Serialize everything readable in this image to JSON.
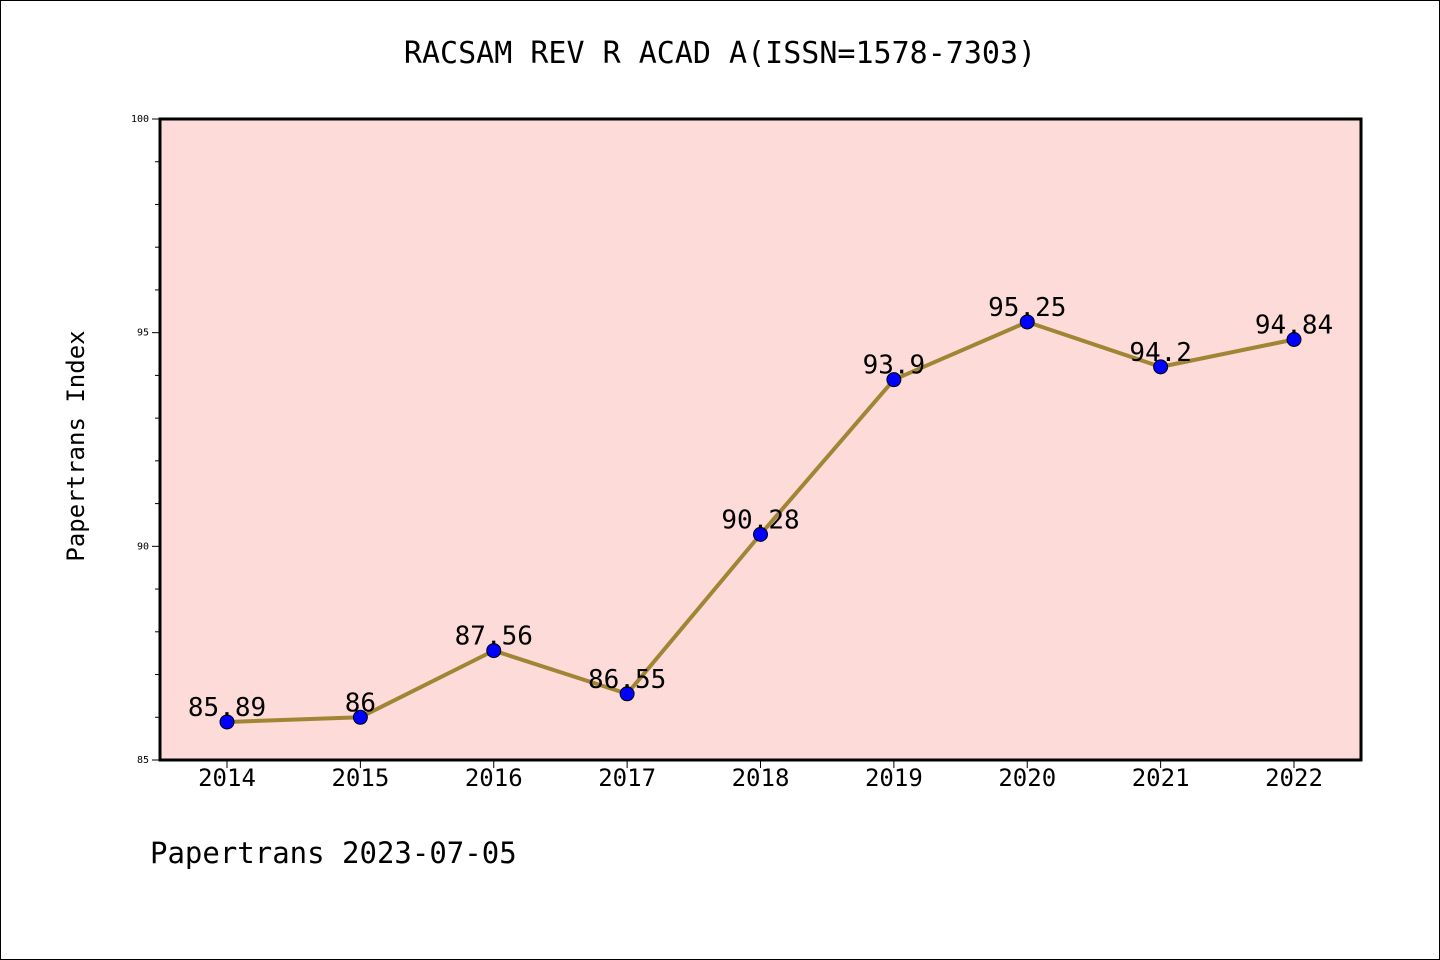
{
  "footer": {
    "note": "Papertrans 2023-07-05"
  },
  "chart_data": {
    "type": "line",
    "title": "RACSAM REV R ACAD A(ISSN=1578-7303)",
    "xlabel": "",
    "ylabel": "Papertrans Index",
    "categories": [
      "2014",
      "2015",
      "2016",
      "2017",
      "2018",
      "2019",
      "2020",
      "2021",
      "2022"
    ],
    "series": [
      {
        "values": [
          85.89,
          86,
          87.56,
          86.55,
          90.28,
          93.9,
          95.25,
          94.2,
          94.84
        ],
        "labels": [
          "85.89",
          "86",
          "87.56",
          "86.55",
          "90.28",
          "93.9",
          "95.25",
          "94.2",
          "94.84"
        ]
      }
    ],
    "ylim": [
      85,
      100
    ],
    "yticks": [
      "85",
      "90",
      "95",
      "100"
    ],
    "grid": false,
    "legend": "none",
    "colors": {
      "plot_background": "#FDDBD8",
      "line": "#A08535",
      "marker": "#0000FF"
    }
  }
}
